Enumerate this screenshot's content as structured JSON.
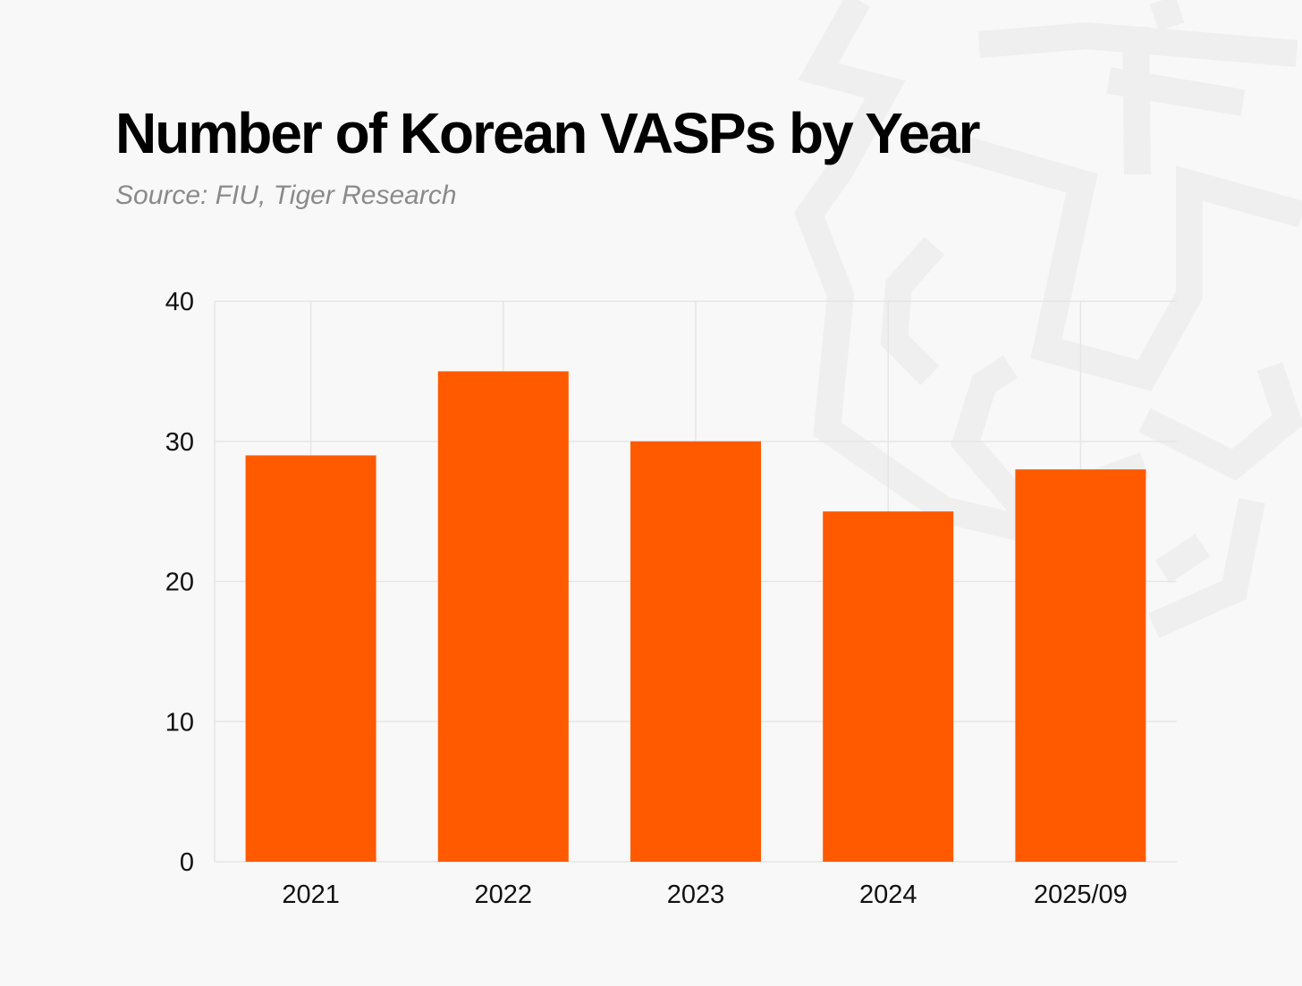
{
  "chart_data": {
    "type": "bar",
    "title": "Number of Korean VASPs by Year",
    "subtitle": "Source: FIU, Tiger Research",
    "categories": [
      "2021",
      "2022",
      "2023",
      "2024",
      "2025/09"
    ],
    "values": [
      29,
      35,
      30,
      25,
      28
    ],
    "xlabel": "",
    "ylabel": "",
    "ylim": [
      0,
      40
    ],
    "yticks": [
      "0",
      "10",
      "20",
      "30",
      "40"
    ],
    "grid": true,
    "legend": "none"
  },
  "colors": {
    "bar": "#ff5a00",
    "grid": "#e6e6e6",
    "background": "#f8f8f8",
    "watermark": "#efefef"
  },
  "icons": {
    "watermark": "tiger-logo-icon"
  }
}
